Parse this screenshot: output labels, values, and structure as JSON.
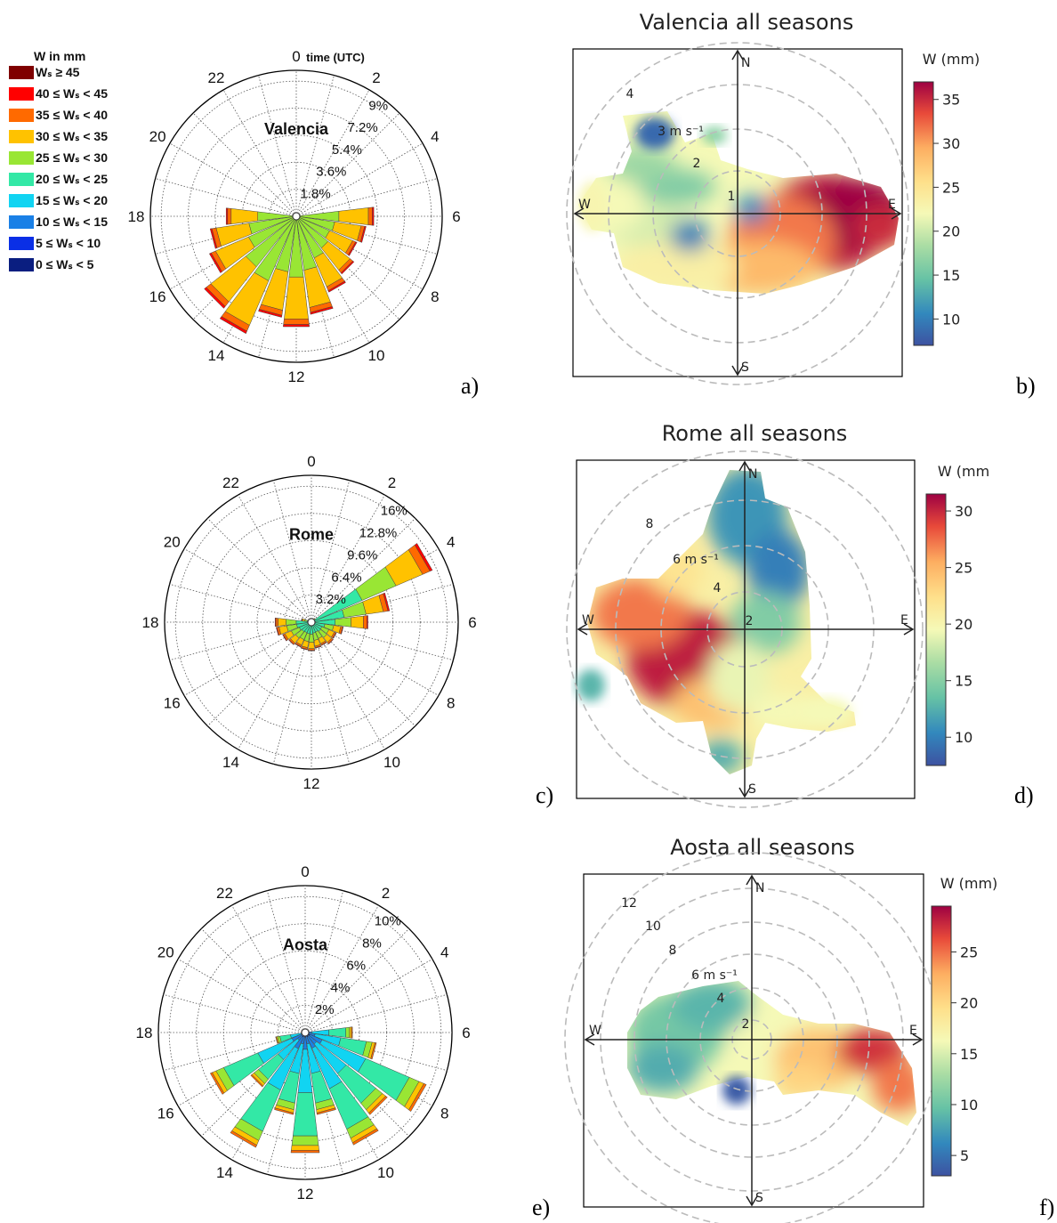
{
  "legend": {
    "title": "W in mm",
    "entries": [
      {
        "label": "Wₛ ≥ 45",
        "color": "#7f0000"
      },
      {
        "label": "40 ≤ Wₛ < 45",
        "color": "#ff0000"
      },
      {
        "label": "35 ≤ Wₛ < 40",
        "color": "#ff6a00"
      },
      {
        "label": "30 ≤ Wₛ < 35",
        "color": "#ffc200"
      },
      {
        "label": "25 ≤ Wₛ < 30",
        "color": "#99e634"
      },
      {
        "label": "20 ≤ Wₛ < 25",
        "color": "#33e8a6"
      },
      {
        "label": "15 ≤ Wₛ < 20",
        "color": "#11d4f2"
      },
      {
        "label": "10 ≤ Wₛ < 15",
        "color": "#1a80e6"
      },
      {
        "label": "5 ≤ Wₛ < 10",
        "color": "#0a2fe6"
      },
      {
        "label": "0 ≤ Wₛ < 5",
        "color": "#0a1e80"
      }
    ]
  },
  "chart_data": [
    {
      "type": "polar-bar",
      "panel_label": "a)",
      "title": "Valencia",
      "axis_label": "time (UTC)",
      "hour_labels": [
        "0",
        "2",
        "4",
        "6",
        "8",
        "10",
        "12",
        "14",
        "16",
        "18",
        "20",
        "22"
      ],
      "radial_labels": [
        "1.8%",
        "3.6%",
        "5.4%",
        "7.2%",
        "9%"
      ],
      "rmax_percent": 9,
      "hours": [
        0,
        1,
        2,
        3,
        4,
        5,
        6,
        7,
        8,
        9,
        10,
        11,
        12,
        13,
        14,
        15,
        16,
        17,
        18,
        19,
        20,
        21,
        22,
        23
      ],
      "frequency_percent": [
        0.1,
        0.1,
        0.1,
        0.1,
        0.1,
        0.1,
        5.2,
        4.7,
        4.4,
        4.9,
        5.5,
        6.6,
        7.4,
        6.8,
        8.5,
        7.8,
        6.3,
        5.8,
        4.7,
        0.1,
        0.1,
        0.1,
        0.1,
        0.1
      ],
      "dominant_class": "30 ≤ Wₛ < 35"
    },
    {
      "type": "heatmap-polar",
      "panel_label": "b)",
      "title": "Valencia all seasons",
      "colorbar_label": "W (mm)",
      "colorbar_ticks": [
        10,
        15,
        20,
        25,
        30,
        35
      ],
      "colorbar_range": [
        7,
        37
      ],
      "compass": [
        "N",
        "E",
        "S",
        "W"
      ],
      "ring_labels": [
        "1",
        "2",
        "3 m s⁻¹",
        "4"
      ]
    },
    {
      "type": "polar-bar",
      "panel_label": "c)",
      "title": "Rome",
      "hour_labels": [
        "0",
        "2",
        "4",
        "6",
        "8",
        "10",
        "12",
        "14",
        "16",
        "18",
        "20",
        "22"
      ],
      "radial_labels": [
        "3.2%",
        "6.4%",
        "9.6%",
        "12.8%",
        "16%"
      ],
      "rmax_percent": 16,
      "hours": [
        0,
        1,
        2,
        3,
        4,
        5,
        6,
        7,
        8,
        9,
        10,
        11,
        12,
        13,
        14,
        15,
        16,
        17,
        18,
        19,
        20,
        21,
        22,
        23
      ],
      "frequency_percent": [
        0.2,
        0.3,
        0.4,
        0.6,
        15.5,
        9.3,
        6.7,
        3.8,
        3.2,
        3.3,
        3.0,
        3.1,
        3.4,
        3.3,
        3.2,
        3.4,
        3.7,
        4.2,
        4.3,
        1.2,
        0.4,
        0.3,
        0.2,
        0.2
      ],
      "dominant_class": "25 ≤ Wₛ < 30"
    },
    {
      "type": "heatmap-polar",
      "panel_label": "d)",
      "title": "Rome all seasons",
      "colorbar_label": "W (mm",
      "colorbar_ticks": [
        10,
        15,
        20,
        25,
        30
      ],
      "colorbar_range": [
        7.5,
        31.5
      ],
      "compass": [
        "N",
        "E",
        "S",
        "W"
      ],
      "ring_labels": [
        "2",
        "4",
        "6 m s⁻¹",
        "8"
      ]
    },
    {
      "type": "polar-bar",
      "panel_label": "e)",
      "title": "Aosta",
      "hour_labels": [
        "0",
        "2",
        "4",
        "6",
        "8",
        "10",
        "12",
        "14",
        "16",
        "18",
        "20",
        "22"
      ],
      "radial_labels": [
        "2%",
        "4%",
        "6%",
        "8%",
        "10%"
      ],
      "rmax_percent": 10,
      "hours": [
        0,
        1,
        2,
        3,
        4,
        5,
        6,
        7,
        8,
        9,
        10,
        11,
        12,
        13,
        14,
        15,
        16,
        17,
        18,
        19,
        20,
        21,
        22,
        23
      ],
      "frequency_percent": [
        0.1,
        0.1,
        0.2,
        0.2,
        0.2,
        0.2,
        3.5,
        5.3,
        9.7,
        7.7,
        9.0,
        6.1,
        8.9,
        6.1,
        9.2,
        5.1,
        7.6,
        2.2,
        0.2,
        0.1,
        0.1,
        0.1,
        0.1,
        0.1
      ],
      "dominant_class": "20 ≤ Wₛ < 25"
    },
    {
      "type": "heatmap-polar",
      "panel_label": "f)",
      "title": "Aosta all seasons",
      "colorbar_label": "W (mm)",
      "colorbar_ticks": [
        5,
        10,
        15,
        20,
        25
      ],
      "colorbar_range": [
        3,
        29.5
      ],
      "compass": [
        "N",
        "E",
        "S",
        "W"
      ],
      "ring_labels": [
        "2",
        "4",
        "6 m s⁻¹",
        "8",
        "10",
        "12"
      ]
    }
  ]
}
